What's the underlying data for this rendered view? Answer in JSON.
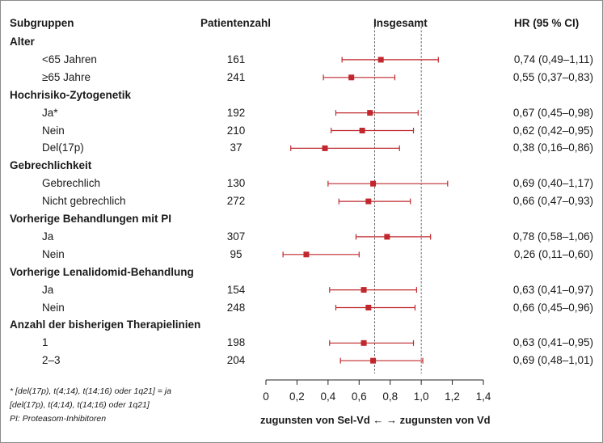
{
  "header": {
    "subgroups": "Subgruppen",
    "patients": "Patientenzahl",
    "overall": "Insgesamt",
    "hr": "HR (95 % CI)"
  },
  "chart_data": {
    "type": "forest",
    "xlim": [
      0,
      1.4
    ],
    "xticks": [
      "0",
      "0,2",
      "0,4",
      "0,6",
      "0,8",
      "1,0",
      "1,2",
      "1,4"
    ],
    "reference_lines": [
      0.7,
      1.0
    ],
    "marker_color": "#c0282d",
    "xlabel": "zugunsten von Sel-Vd ← → zugunsten von Vd",
    "rows": [
      {
        "kind": "group",
        "label": "Alter"
      },
      {
        "kind": "item",
        "label": "<65 Jahren",
        "n": "161",
        "hr": 0.74,
        "lo": 0.49,
        "hi": 1.11,
        "hr_text": "0,74 (0,49–1,11)"
      },
      {
        "kind": "item",
        "label": "≥65 Jahre",
        "n": "241",
        "hr": 0.55,
        "lo": 0.37,
        "hi": 0.83,
        "hr_text": "0,55 (0,37–0,83)"
      },
      {
        "kind": "group",
        "label": "Hochrisiko-Zytogenetik"
      },
      {
        "kind": "item",
        "label": "Ja*",
        "n": "192",
        "hr": 0.67,
        "lo": 0.45,
        "hi": 0.98,
        "hr_text": "0,67 (0,45–0,98)"
      },
      {
        "kind": "item",
        "label": "Nein",
        "n": "210",
        "hr": 0.62,
        "lo": 0.42,
        "hi": 0.95,
        "hr_text": "0,62 (0,42–0,95)"
      },
      {
        "kind": "item",
        "label": "Del(17p)",
        "n": "37",
        "hr": 0.38,
        "lo": 0.16,
        "hi": 0.86,
        "hr_text": "0,38 (0,16–0,86)"
      },
      {
        "kind": "group",
        "label": "Gebrechlichkeit"
      },
      {
        "kind": "item",
        "label": "Gebrechlich",
        "n": "130",
        "hr": 0.69,
        "lo": 0.4,
        "hi": 1.17,
        "hr_text": "0,69 (0,40–1,17)"
      },
      {
        "kind": "item",
        "label": "Nicht gebrechlich",
        "n": "272",
        "hr": 0.66,
        "lo": 0.47,
        "hi": 0.93,
        "hr_text": "0,66 (0,47–0,93)"
      },
      {
        "kind": "group",
        "label": "Vorherige Behandlungen mit PI"
      },
      {
        "kind": "item",
        "label": "Ja",
        "n": "307",
        "hr": 0.78,
        "lo": 0.58,
        "hi": 1.06,
        "hr_text": "0,78 (0,58–1,06)"
      },
      {
        "kind": "item",
        "label": "Nein",
        "n": "95",
        "hr": 0.26,
        "lo": 0.11,
        "hi": 0.6,
        "hr_text": "0,26 (0,11–0,60)"
      },
      {
        "kind": "group",
        "label": "Vorherige Lenalidomid-Behandlung"
      },
      {
        "kind": "item",
        "label": "Ja",
        "n": "154",
        "hr": 0.63,
        "lo": 0.41,
        "hi": 0.97,
        "hr_text": "0,63 (0,41–0,97)"
      },
      {
        "kind": "item",
        "label": "Nein",
        "n": "248",
        "hr": 0.66,
        "lo": 0.45,
        "hi": 0.96,
        "hr_text": "0,66 (0,45–0,96)"
      },
      {
        "kind": "group",
        "label": "Anzahl der bisherigen Therapielinien"
      },
      {
        "kind": "item",
        "label": "1",
        "n": "198",
        "hr": 0.63,
        "lo": 0.41,
        "hi": 0.95,
        "hr_text": "0,63 (0,41–0,95)"
      },
      {
        "kind": "item",
        "label": "2–3",
        "n": "204",
        "hr": 0.69,
        "lo": 0.48,
        "hi": 1.01,
        "hr_text": "0,69 (0,48–1,01)"
      }
    ]
  },
  "footnote": {
    "line1": "* [del(17p), t(4;14), t(14;16) oder 1q21] = ja",
    "line2": "[del(17p), t(4;14), t(14;16) oder 1q21]",
    "line3": "PI: Proteasom-Inhibitoren"
  }
}
